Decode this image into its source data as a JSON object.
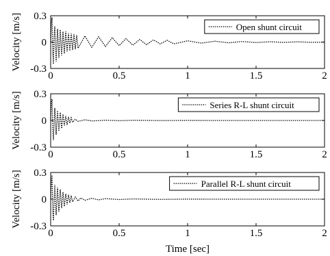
{
  "chart_data": [
    {
      "type": "line",
      "xlabel": "",
      "ylabel": "Velocity [m/s]",
      "xlim": [
        0,
        2
      ],
      "ylim": [
        -0.3,
        0.3
      ],
      "xticks": [
        "0",
        "0.5",
        "1",
        "1.5",
        "2"
      ],
      "yticks": [
        "0.3",
        "0",
        "-0.3"
      ],
      "grid": false,
      "legend_position": "top-right",
      "series": [
        {
          "name": "Open shunt circuit",
          "style": "dotted",
          "color": "#000000",
          "x": [
            0,
            0.005,
            0.01,
            0.015,
            0.02,
            0.025,
            0.03,
            0.04,
            0.05,
            0.06,
            0.07,
            0.08,
            0.09,
            0.1,
            0.11,
            0.12,
            0.13,
            0.14,
            0.15,
            0.16,
            0.17,
            0.18,
            0.19,
            0.2,
            0.25,
            0.3,
            0.35,
            0.4,
            0.45,
            0.5,
            0.55,
            0.6,
            0.65,
            0.7,
            0.75,
            0.8,
            0.85,
            0.9,
            1.0,
            1.1,
            1.2,
            1.3,
            1.4,
            1.5,
            1.6,
            1.7,
            1.8,
            1.9,
            2.0
          ],
          "y": [
            0.0,
            0.22,
            0.28,
            -0.1,
            -0.25,
            0.05,
            0.18,
            -0.22,
            0.15,
            -0.18,
            0.14,
            -0.15,
            0.12,
            -0.13,
            0.12,
            -0.11,
            0.1,
            -0.1,
            0.1,
            -0.09,
            0.09,
            -0.08,
            0.08,
            -0.07,
            0.07,
            -0.06,
            0.06,
            -0.05,
            0.05,
            -0.04,
            0.04,
            -0.035,
            0.03,
            -0.03,
            0.025,
            -0.02,
            0.02,
            -0.02,
            0.015,
            -0.012,
            0.01,
            -0.008,
            0.006,
            -0.005,
            0.004,
            -0.003,
            0.003,
            -0.002,
            0.0
          ]
        }
      ]
    },
    {
      "type": "line",
      "xlabel": "",
      "ylabel": "Velocity [m/s]",
      "xlim": [
        0,
        2
      ],
      "ylim": [
        -0.3,
        0.3
      ],
      "xticks": [
        "0",
        "0.5",
        "1",
        "1.5",
        "2"
      ],
      "yticks": [
        "0.3",
        "0",
        "-0.3"
      ],
      "grid": false,
      "legend_position": "top-right",
      "series": [
        {
          "name": "Series R-L shunt circuit",
          "style": "dotted",
          "color": "#000000",
          "x": [
            0,
            0.005,
            0.01,
            0.015,
            0.02,
            0.03,
            0.04,
            0.05,
            0.06,
            0.07,
            0.08,
            0.09,
            0.1,
            0.11,
            0.12,
            0.13,
            0.14,
            0.15,
            0.16,
            0.18,
            0.2,
            0.25,
            0.3,
            0.4,
            0.5,
            0.6,
            0.8,
            1.0,
            1.2,
            1.4,
            1.6,
            1.8,
            2.0
          ],
          "y": [
            0.0,
            0.2,
            0.24,
            -0.08,
            -0.22,
            0.14,
            -0.16,
            0.11,
            -0.12,
            0.09,
            -0.09,
            0.07,
            -0.06,
            0.05,
            -0.05,
            0.04,
            -0.03,
            0.03,
            -0.02,
            0.015,
            -0.01,
            0.008,
            -0.005,
            0.003,
            -0.002,
            0.002,
            -0.001,
            0.001,
            0.0,
            0.0,
            0.0,
            0.0,
            0.0
          ]
        }
      ]
    },
    {
      "type": "line",
      "xlabel": "Time [sec]",
      "ylabel": "Velocity [m/s]",
      "xlim": [
        0,
        2
      ],
      "ylim": [
        -0.3,
        0.3
      ],
      "xticks": [
        "0",
        "0.5",
        "1",
        "1.5",
        "2"
      ],
      "yticks": [
        "0.3",
        "0",
        "-0.3"
      ],
      "grid": false,
      "legend_position": "top-right",
      "series": [
        {
          "name": "Parallel R-L shunt circuit",
          "style": "dotted",
          "color": "#000000",
          "x": [
            0,
            0.005,
            0.01,
            0.015,
            0.02,
            0.03,
            0.04,
            0.05,
            0.06,
            0.07,
            0.08,
            0.09,
            0.1,
            0.11,
            0.12,
            0.13,
            0.14,
            0.15,
            0.16,
            0.18,
            0.2,
            0.22,
            0.25,
            0.3,
            0.35,
            0.4,
            0.5,
            0.6,
            0.8,
            1.0,
            1.2,
            1.4,
            1.6,
            1.8,
            2.0
          ],
          "y": [
            0.0,
            0.22,
            0.27,
            -0.1,
            -0.24,
            0.16,
            -0.18,
            0.13,
            -0.14,
            0.11,
            -0.1,
            0.08,
            -0.08,
            0.06,
            -0.06,
            0.05,
            -0.04,
            0.04,
            -0.03,
            0.025,
            -0.02,
            0.015,
            -0.012,
            0.01,
            -0.008,
            0.006,
            -0.004,
            0.003,
            -0.002,
            0.001,
            0.0,
            0.0,
            0.0,
            0.0,
            0.0
          ]
        }
      ]
    }
  ]
}
